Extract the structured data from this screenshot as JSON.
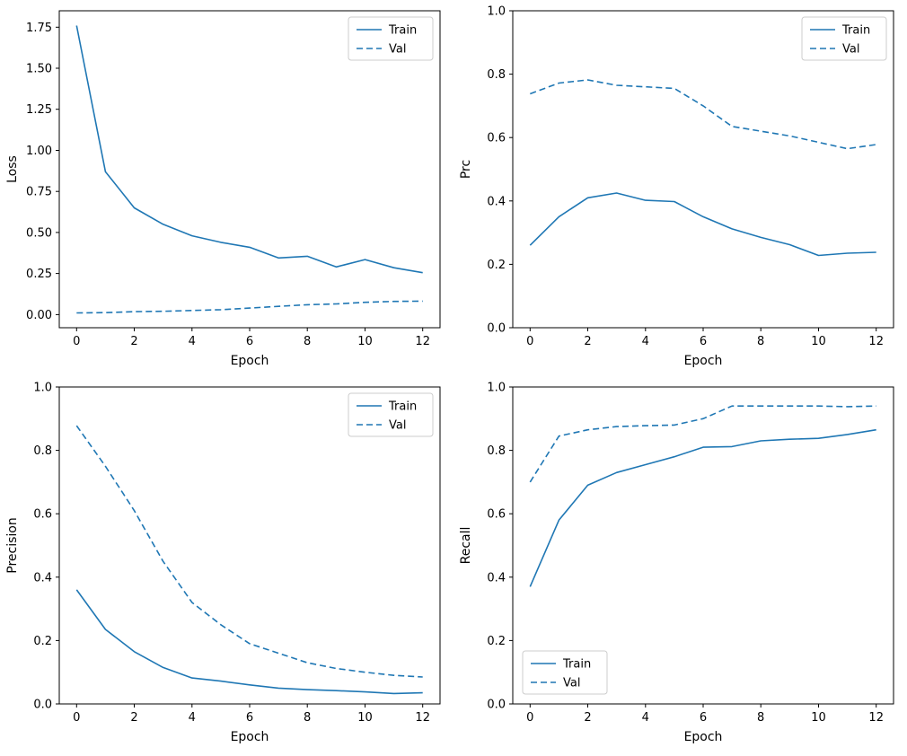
{
  "figure": {
    "background": "#ffffff",
    "line_color": "#1f77b4",
    "axis_color": "#000000",
    "legend_edge_color": "#cccccc"
  },
  "chart_data": [
    {
      "type": "line",
      "title": "",
      "xlabel": "Epoch",
      "ylabel": "Loss",
      "xlim": [
        -0.6,
        12.6
      ],
      "ylim": [
        -0.08,
        1.85
      ],
      "xtick_values": [
        0,
        2,
        4,
        6,
        8,
        10,
        12
      ],
      "xtick_labels": [
        "0",
        "2",
        "4",
        "6",
        "8",
        "10",
        "12"
      ],
      "ytick_values": [
        0.0,
        0.25,
        0.5,
        0.75,
        1.0,
        1.25,
        1.5,
        1.75
      ],
      "ytick_labels": [
        "0.00",
        "0.25",
        "0.50",
        "0.75",
        "1.00",
        "1.25",
        "1.50",
        "1.75"
      ],
      "grid": false,
      "legend_position": "upper-right",
      "x": [
        0,
        1,
        2,
        3,
        4,
        5,
        6,
        7,
        8,
        9,
        10,
        11,
        12
      ],
      "series": [
        {
          "name": "Train",
          "style": "solid",
          "values": [
            1.76,
            0.87,
            0.65,
            0.55,
            0.48,
            0.44,
            0.41,
            0.345,
            0.355,
            0.29,
            0.335,
            0.285,
            0.255
          ]
        },
        {
          "name": "Val",
          "style": "dashed",
          "values": [
            0.01,
            0.012,
            0.018,
            0.02,
            0.025,
            0.03,
            0.04,
            0.05,
            0.06,
            0.065,
            0.075,
            0.08,
            0.082
          ]
        }
      ]
    },
    {
      "type": "line",
      "title": "",
      "xlabel": "Epoch",
      "ylabel": "Prc",
      "xlim": [
        -0.6,
        12.6
      ],
      "ylim": [
        0.0,
        1.0
      ],
      "xtick_values": [
        0,
        2,
        4,
        6,
        8,
        10,
        12
      ],
      "xtick_labels": [
        "0",
        "2",
        "4",
        "6",
        "8",
        "10",
        "12"
      ],
      "ytick_values": [
        0.0,
        0.2,
        0.4,
        0.6,
        0.8,
        1.0
      ],
      "ytick_labels": [
        "0.0",
        "0.2",
        "0.4",
        "0.6",
        "0.8",
        "1.0"
      ],
      "grid": false,
      "legend_position": "upper-right",
      "x": [
        0,
        1,
        2,
        3,
        4,
        5,
        6,
        7,
        8,
        9,
        10,
        11,
        12
      ],
      "series": [
        {
          "name": "Train",
          "style": "solid",
          "values": [
            0.26,
            0.35,
            0.41,
            0.425,
            0.402,
            0.398,
            0.35,
            0.312,
            0.285,
            0.262,
            0.228,
            0.235,
            0.238
          ]
        },
        {
          "name": "Val",
          "style": "dashed",
          "values": [
            0.738,
            0.772,
            0.782,
            0.765,
            0.76,
            0.755,
            0.7,
            0.635,
            0.62,
            0.605,
            0.585,
            0.565,
            0.578
          ]
        }
      ]
    },
    {
      "type": "line",
      "title": "",
      "xlabel": "Epoch",
      "ylabel": "Precision",
      "xlim": [
        -0.6,
        12.6
      ],
      "ylim": [
        0.0,
        1.0
      ],
      "xtick_values": [
        0,
        2,
        4,
        6,
        8,
        10,
        12
      ],
      "xtick_labels": [
        "0",
        "2",
        "4",
        "6",
        "8",
        "10",
        "12"
      ],
      "ytick_values": [
        0.0,
        0.2,
        0.4,
        0.6,
        0.8,
        1.0
      ],
      "ytick_labels": [
        "0.0",
        "0.2",
        "0.4",
        "0.6",
        "0.8",
        "1.0"
      ],
      "grid": false,
      "legend_position": "upper-right",
      "x": [
        0,
        1,
        2,
        3,
        4,
        5,
        6,
        7,
        8,
        9,
        10,
        11,
        12
      ],
      "series": [
        {
          "name": "Train",
          "style": "solid",
          "values": [
            0.36,
            0.235,
            0.165,
            0.115,
            0.082,
            0.072,
            0.06,
            0.05,
            0.045,
            0.042,
            0.038,
            0.033,
            0.035
          ]
        },
        {
          "name": "Val",
          "style": "dashed",
          "values": [
            0.878,
            0.75,
            0.61,
            0.45,
            0.32,
            0.25,
            0.19,
            0.16,
            0.13,
            0.112,
            0.1,
            0.09,
            0.085
          ]
        }
      ]
    },
    {
      "type": "line",
      "title": "",
      "xlabel": "Epoch",
      "ylabel": "Recall",
      "xlim": [
        -0.6,
        12.6
      ],
      "ylim": [
        0.0,
        1.0
      ],
      "xtick_values": [
        0,
        2,
        4,
        6,
        8,
        10,
        12
      ],
      "xtick_labels": [
        "0",
        "2",
        "4",
        "6",
        "8",
        "10",
        "12"
      ],
      "ytick_values": [
        0.0,
        0.2,
        0.4,
        0.6,
        0.8,
        1.0
      ],
      "ytick_labels": [
        "0.0",
        "0.2",
        "0.4",
        "0.6",
        "0.8",
        "1.0"
      ],
      "grid": false,
      "legend_position": "lower-left",
      "x": [
        0,
        1,
        2,
        3,
        4,
        5,
        6,
        7,
        8,
        9,
        10,
        11,
        12
      ],
      "series": [
        {
          "name": "Train",
          "style": "solid",
          "values": [
            0.37,
            0.58,
            0.69,
            0.73,
            0.755,
            0.78,
            0.81,
            0.812,
            0.83,
            0.835,
            0.838,
            0.85,
            0.865
          ]
        },
        {
          "name": "Val",
          "style": "dashed",
          "values": [
            0.7,
            0.845,
            0.865,
            0.875,
            0.878,
            0.88,
            0.9,
            0.94,
            0.94,
            0.94,
            0.94,
            0.938,
            0.94
          ]
        }
      ]
    }
  ]
}
